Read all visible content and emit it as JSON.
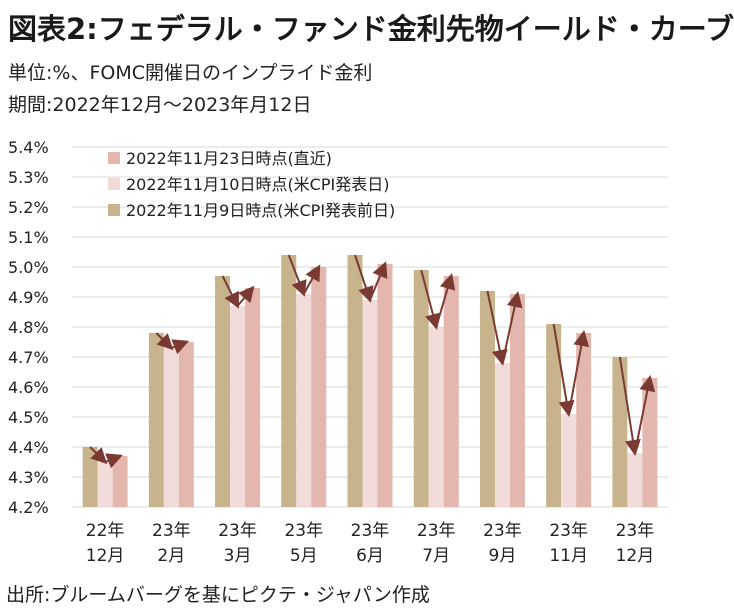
{
  "title": "図表2:フェデラル・ファンド金利先物イールド・カーブ",
  "subtitle_unit": "単位:%、FOMC開催日のインプライド金利",
  "subtitle_period": "期間:2022年12月～2023年月12日",
  "source": "出所:ブルームバーグを基にピクテ・ジャパン作成",
  "chart_data": {
    "type": "bar",
    "categories": [
      [
        "22年",
        "12月"
      ],
      [
        "23年",
        "2月"
      ],
      [
        "23年",
        "3月"
      ],
      [
        "23年",
        "5月"
      ],
      [
        "23年",
        "6月"
      ],
      [
        "23年",
        "7月"
      ],
      [
        "23年",
        "9月"
      ],
      [
        "23年",
        "11月"
      ],
      [
        "23年",
        "12月"
      ]
    ],
    "series": [
      {
        "name": "2022年11月9日時点(米CPI発表前日)",
        "color": "#c8b48c",
        "values": [
          4.4,
          4.78,
          4.97,
          5.04,
          5.04,
          4.99,
          4.92,
          4.81,
          4.7
        ]
      },
      {
        "name": "2022年11月10日時点(米CPI発表日)",
        "color": "#f2dcda",
        "values": [
          4.35,
          4.73,
          4.87,
          4.91,
          4.89,
          4.8,
          4.68,
          4.51,
          4.38
        ]
      },
      {
        "name": "2022年11月23日時点(直近)",
        "color": "#e3b6ae",
        "values": [
          4.37,
          4.75,
          4.93,
          5.0,
          5.01,
          4.97,
          4.91,
          4.78,
          4.63
        ]
      }
    ],
    "legend_order": [
      2,
      1,
      0
    ],
    "legend_position": "top-left",
    "yticks": [
      "4.2%",
      "4.3%",
      "4.4%",
      "4.5%",
      "4.6%",
      "4.7%",
      "4.8%",
      "4.9%",
      "5.0%",
      "5.1%",
      "5.2%",
      "5.3%",
      "5.4%"
    ],
    "ylim": [
      4.2,
      5.4
    ],
    "arrow_color": "#7a3a32",
    "grid": "horizontal"
  }
}
